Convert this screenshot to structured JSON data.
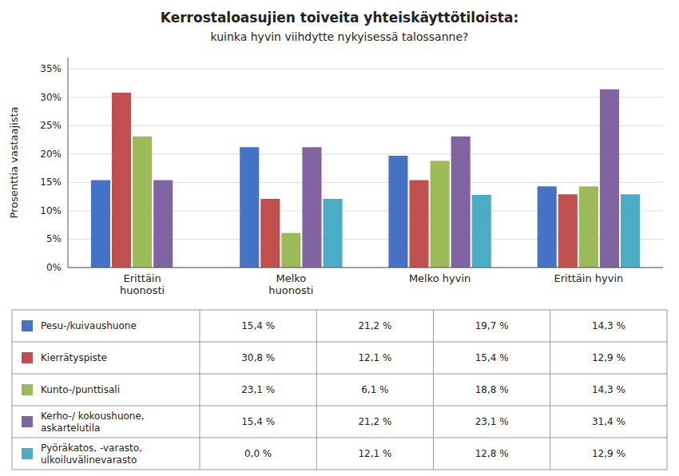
{
  "chart_data": {
    "type": "bar",
    "title": "Kerrostaloasujien toiveita yhteiskäyttötiloista:",
    "subtitle": "kuinka hyvin viihdytte nykyisessä talossanne?",
    "y_label": "Prosenttia vastaajista",
    "categories": [
      "Erittäin\nhuonosti",
      "Melko\nhuonosti",
      "Melko hyvin",
      "Erittäin hyvin"
    ],
    "series": [
      {
        "name": "Pesu-/kuivaushuone",
        "color": "#4472C4",
        "values": [
          15.4,
          21.2,
          19.7,
          14.3
        ],
        "value_labels": [
          "15,4 %",
          "21,2 %",
          "19,7 %",
          "14,3 %"
        ]
      },
      {
        "name": "Kierrätyspiste",
        "color": "#C0504D",
        "values": [
          30.8,
          12.1,
          15.4,
          12.9
        ],
        "value_labels": [
          "30,8 %",
          "12,1 %",
          "15,4 %",
          "12,9 %"
        ]
      },
      {
        "name": "Kunto-/punttisali",
        "color": "#9BBB59",
        "values": [
          23.1,
          6.1,
          18.8,
          14.3
        ],
        "value_labels": [
          "23,1 %",
          "6,1 %",
          "18,8 %",
          "14,3 %"
        ]
      },
      {
        "name": "Kerho-/ kokoushuone,\naskartelutila",
        "color": "#8064A2",
        "values": [
          15.4,
          21.2,
          23.1,
          31.4
        ],
        "value_labels": [
          "15,4 %",
          "21,2 %",
          "23,1 %",
          "31,4 %"
        ]
      },
      {
        "name": "Pyöräkatos, -varasto,\nulkoiluvälinevarasto",
        "color": "#4BACC6",
        "values": [
          0.0,
          12.1,
          12.8,
          12.9
        ],
        "value_labels": [
          "0,0 %",
          "12,1 %",
          "12,8 %",
          "12,9 %"
        ]
      }
    ],
    "ylim": [
      0,
      37
    ],
    "yticks": [
      {
        "value": 0,
        "label": "0%"
      },
      {
        "value": 5,
        "label": "5%"
      },
      {
        "value": 10,
        "label": "10%"
      },
      {
        "value": 15,
        "label": "15%"
      },
      {
        "value": 20,
        "label": "20%"
      },
      {
        "value": 25,
        "label": "25%"
      },
      {
        "value": 30,
        "label": "30%"
      },
      {
        "value": 35,
        "label": "35%"
      }
    ],
    "grid": true
  }
}
